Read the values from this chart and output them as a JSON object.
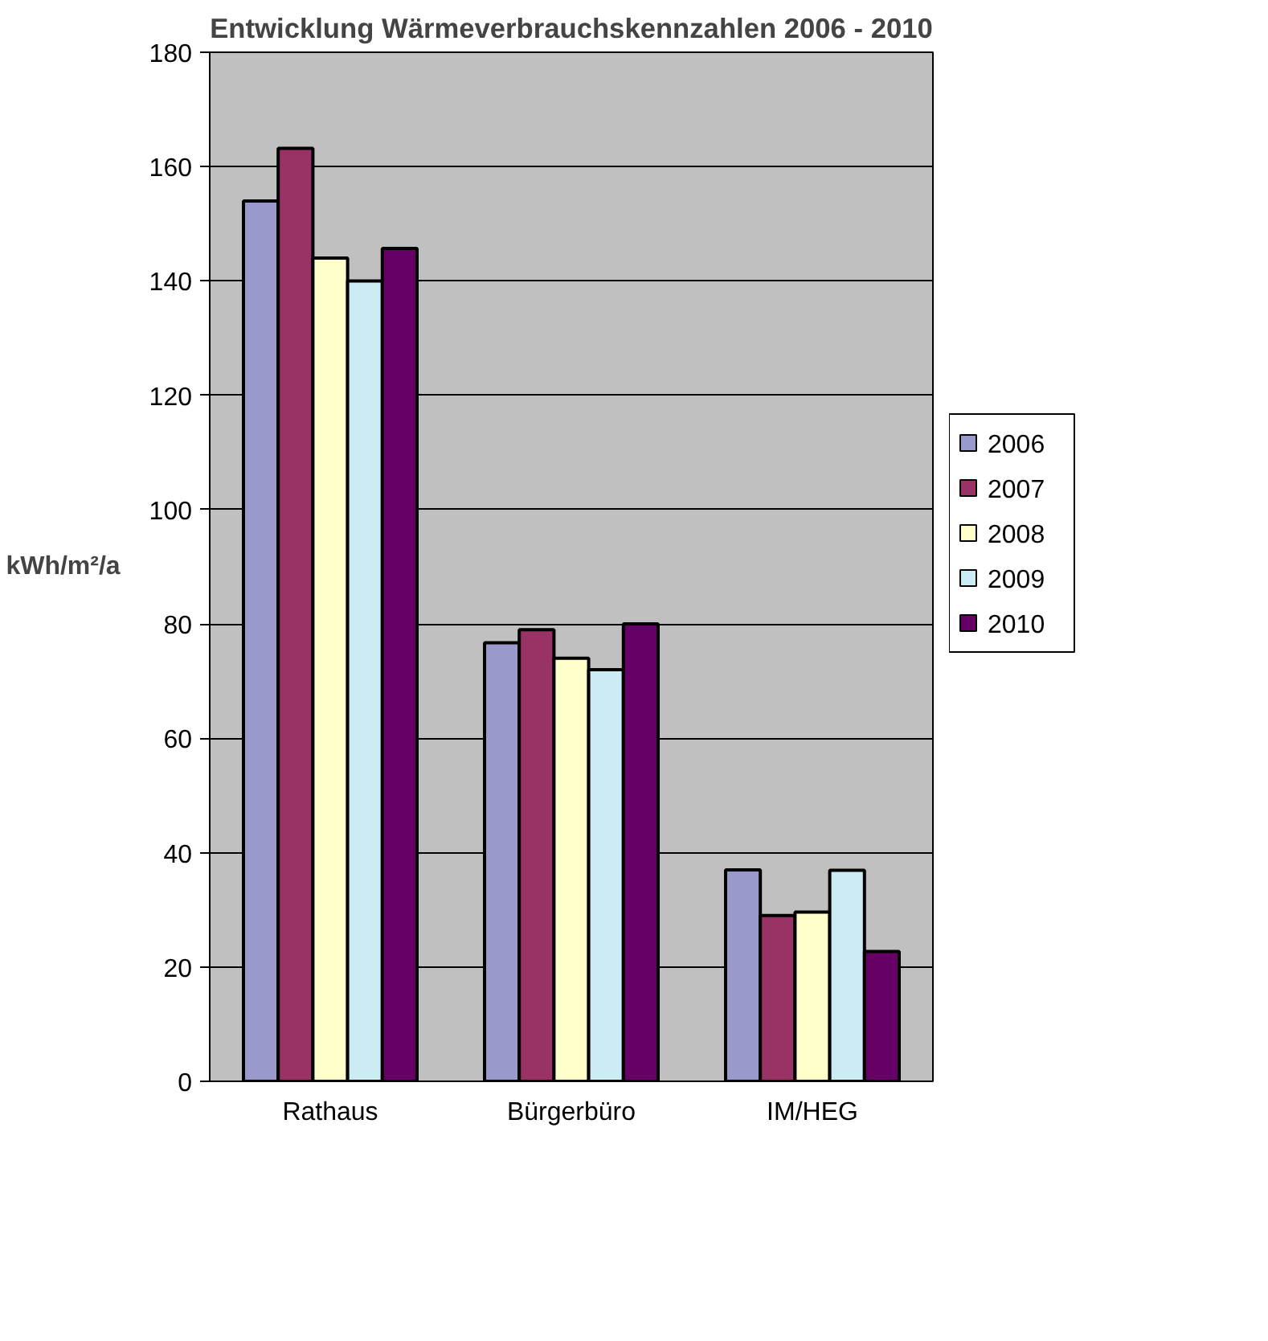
{
  "chart_data": {
    "type": "bar",
    "title": "Entwicklung Wärmeverbrauchskennzahlen 2006 - 2010",
    "ylabel": "kWh/m²/a",
    "categories": [
      "Rathaus",
      "Bürgerbüro",
      "IM/HEG"
    ],
    "series": [
      {
        "name": "2006",
        "color": "#9999cc",
        "values": [
          154,
          76.7,
          37
        ]
      },
      {
        "name": "2007",
        "color": "#993366",
        "values": [
          163.2,
          79,
          29
        ]
      },
      {
        "name": "2008",
        "color": "#ffffcc",
        "values": [
          144,
          74,
          29.6
        ]
      },
      {
        "name": "2009",
        "color": "#ccecf4",
        "values": [
          140,
          72,
          36.9
        ]
      },
      {
        "name": "2010",
        "color": "#660066",
        "values": [
          145.7,
          80,
          22.7
        ]
      }
    ],
    "ylim": [
      0,
      180
    ],
    "yticks": [
      0,
      20,
      40,
      60,
      80,
      100,
      120,
      140,
      160,
      180
    ],
    "grid": "y",
    "legend": "right"
  }
}
